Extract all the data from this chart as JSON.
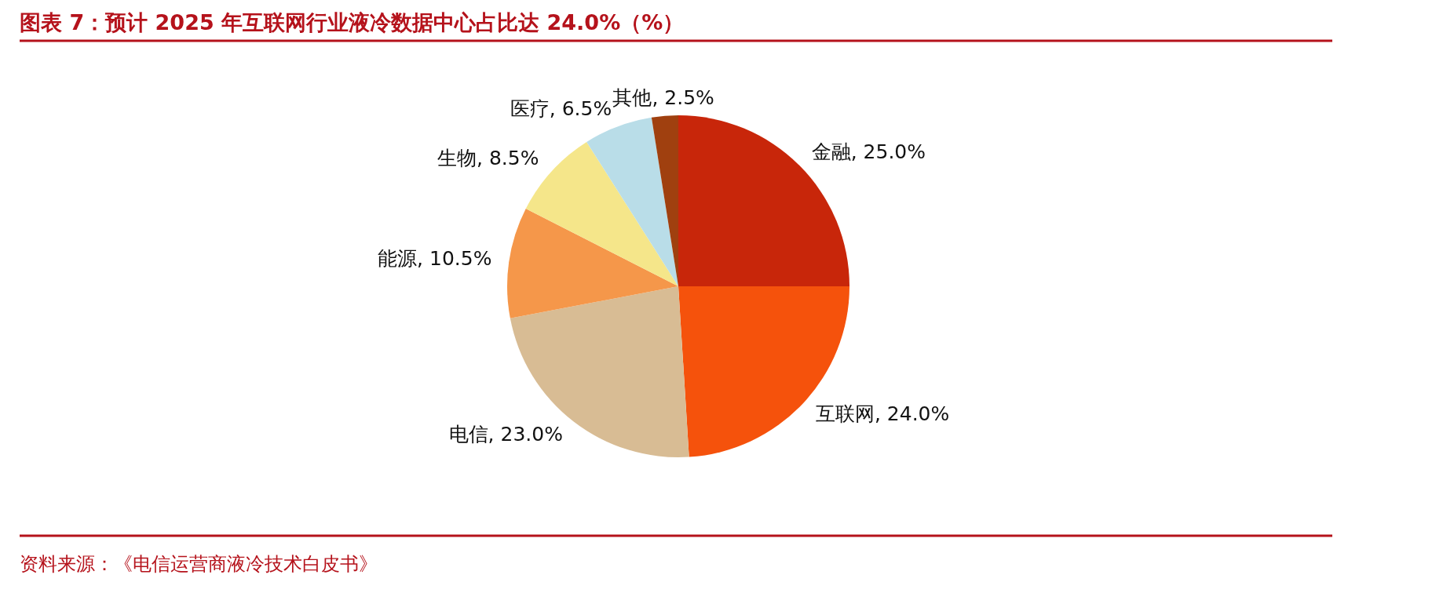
{
  "chart_data": {
    "type": "pie",
    "title": "图表 7：预计 2025 年互联网行业液冷数据中心占比达 24.0%（%）",
    "annotations": [
      "资料来源：《电信运营商液冷技术白皮书》"
    ],
    "categories": [
      "金融",
      "互联网",
      "电信",
      "能源",
      "生物",
      "医疗",
      "其他"
    ],
    "values": [
      25.0,
      24.0,
      23.0,
      10.5,
      8.5,
      6.5,
      2.5
    ],
    "value_labels": [
      "25.0%",
      "24.0%",
      "23.0%",
      "10.5%",
      "8.5%",
      "6.5%",
      "2.5%"
    ],
    "colors": [
      "#c8260a",
      "#f5520c",
      "#d8bc94",
      "#f5974a",
      "#f5e68a",
      "#b9dde8",
      "#a0400f"
    ]
  }
}
